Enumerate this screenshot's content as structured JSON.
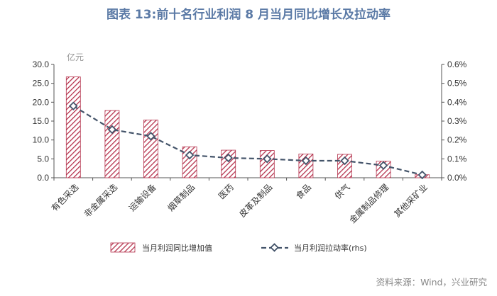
{
  "title": "图表 13:前十名行业利润 8 月当月同比增长及拉动率",
  "source": "资料来源：Wind，兴业研究",
  "colors": {
    "bar": "#b5334d",
    "line": "#44546a",
    "title": "#5b7aa6"
  },
  "chart_data": {
    "type": "bar",
    "title": "图表 13:前十名行业利润 8 月当月同比增长及拉动率",
    "unit_left": "亿元",
    "categories": [
      "有色采选",
      "非金属采选",
      "运输设备",
      "烟草制品",
      "医药",
      "皮革及制品",
      "食品",
      "供气",
      "金属制品修理",
      "其他采矿业"
    ],
    "y_left": {
      "min": 0,
      "max": 30,
      "step": 5,
      "ticks": [
        "0.0",
        "5.0",
        "10.0",
        "15.0",
        "20.0",
        "25.0",
        "30.0"
      ]
    },
    "y_right": {
      "min": 0,
      "max": 0.6,
      "step": 0.1,
      "ticks": [
        "0.0%",
        "0.1%",
        "0.2%",
        "0.3%",
        "0.4%",
        "0.5%",
        "0.6%"
      ]
    },
    "series": [
      {
        "name": "当月利润同比增加值",
        "type": "bar",
        "axis": "left",
        "values": [
          26.7,
          17.8,
          15.3,
          8.2,
          7.3,
          7.2,
          6.3,
          6.2,
          4.4,
          0.8
        ]
      },
      {
        "name": "当月利润拉动率(rhs)",
        "type": "line",
        "axis": "right",
        "values": [
          0.38,
          0.255,
          0.22,
          0.12,
          0.105,
          0.1,
          0.09,
          0.09,
          0.065,
          0.015
        ]
      }
    ],
    "legend_position": "bottom"
  }
}
